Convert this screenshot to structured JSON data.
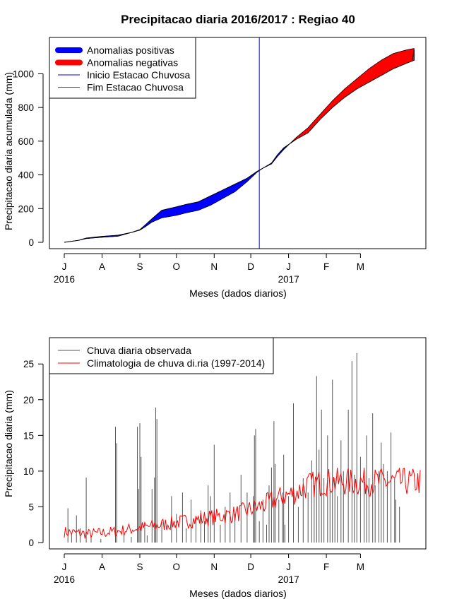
{
  "figure_title": "Precipitacao diaria 2016/2017 : Regiao 40",
  "chart_data": [
    {
      "type": "area",
      "title": "Precipitacao diaria 2016/2017 : Regiao 40",
      "xlabel": "Meses (dados diarios)",
      "ylabel": "Precipitacao diaria acumulada (mm)",
      "ylim": [
        0,
        1150
      ],
      "yticks": [
        0,
        200,
        400,
        600,
        800,
        1000
      ],
      "xlim_day": [
        0,
        292
      ],
      "months": [
        {
          "label": "J",
          "day": 0
        },
        {
          "label": "A",
          "day": 31
        },
        {
          "label": "S",
          "day": 62
        },
        {
          "label": "O",
          "day": 92
        },
        {
          "label": "N",
          "day": 123
        },
        {
          "label": "D",
          "day": 153
        },
        {
          "label": "J",
          "day": 184
        },
        {
          "label": "F",
          "day": 215
        },
        {
          "label": "M",
          "day": 243
        }
      ],
      "years": [
        {
          "label": "2016",
          "day": 0
        },
        {
          "label": "2017",
          "day": 184
        }
      ],
      "series": [
        {
          "name": "observed_accumulated",
          "days": [
            0,
            12,
            18,
            31,
            44,
            55,
            62,
            66,
            72,
            80,
            92,
            100,
            110,
            120,
            130,
            140,
            150,
            158,
            163,
            170,
            175,
            180,
            190,
            200,
            210,
            220,
            230,
            240,
            250,
            260,
            270,
            280,
            287,
            287
          ],
          "values": [
            0,
            12,
            25,
            35,
            42,
            58,
            75,
            100,
            140,
            190,
            210,
            225,
            240,
            275,
            310,
            345,
            380,
            420,
            440,
            470,
            520,
            560,
            610,
            650,
            730,
            800,
            860,
            910,
            950,
            990,
            1030,
            1060,
            1080,
            1140
          ]
        },
        {
          "name": "climatology_accumulated",
          "days": [
            0,
            12,
            18,
            31,
            44,
            55,
            62,
            66,
            72,
            80,
            92,
            100,
            110,
            120,
            130,
            140,
            150,
            158,
            163,
            170,
            175,
            180,
            190,
            200,
            210,
            220,
            230,
            240,
            250,
            260,
            270,
            280,
            287,
            287
          ],
          "values": [
            0,
            12,
            22,
            30,
            36,
            58,
            72,
            90,
            120,
            145,
            160,
            175,
            190,
            220,
            260,
            300,
            360,
            415,
            440,
            465,
            510,
            550,
            620,
            680,
            760,
            840,
            910,
            970,
            1030,
            1080,
            1120,
            1140,
            1150,
            1150
          ]
        }
      ],
      "rainy_season_start_day": 160,
      "legend": {
        "position": "top-left",
        "items": [
          {
            "label": "Anomalias positivas",
            "color": "#0000ff",
            "style": "thick"
          },
          {
            "label": "Anomalias negativas",
            "color": "#ff0000",
            "style": "thick"
          },
          {
            "label": "Inicio Estacao Chuvosa",
            "color": "#0000ff",
            "style": "thin"
          },
          {
            "label": "Fim Estacao Chuvosa",
            "color": "#ff0000",
            "style": "thin"
          }
        ]
      }
    },
    {
      "type": "bar",
      "title": "",
      "xlabel": "Meses (dados diarios)",
      "ylabel": "Precipitacao diaria (mm)",
      "ylim": [
        0,
        27
      ],
      "yticks": [
        0,
        5,
        10,
        15,
        20,
        25
      ],
      "xlim_day": [
        0,
        292
      ],
      "months": [
        {
          "label": "J",
          "day": 0
        },
        {
          "label": "A",
          "day": 31
        },
        {
          "label": "S",
          "day": 62
        },
        {
          "label": "O",
          "day": 92
        },
        {
          "label": "N",
          "day": 123
        },
        {
          "label": "D",
          "day": 153
        },
        {
          "label": "J",
          "day": 184
        },
        {
          "label": "F",
          "day": 215
        },
        {
          "label": "M",
          "day": 243
        }
      ],
      "years": [
        {
          "label": "2016",
          "day": 0
        },
        {
          "label": "2017",
          "day": 184
        }
      ],
      "observed_daily": [
        [
          3,
          4.8
        ],
        [
          6,
          1.2
        ],
        [
          10,
          3.8
        ],
        [
          13,
          2.0
        ],
        [
          18,
          9.1
        ],
        [
          22,
          0.8
        ],
        [
          30,
          0.5
        ],
        [
          42,
          16.2
        ],
        [
          43,
          13.9
        ],
        [
          49,
          1.2
        ],
        [
          55,
          0.8
        ],
        [
          60,
          16.2
        ],
        [
          61,
          7.5
        ],
        [
          62,
          16.7
        ],
        [
          63,
          12.0
        ],
        [
          66,
          2.5
        ],
        [
          68,
          1.0
        ],
        [
          72,
          7.5
        ],
        [
          74,
          9.1
        ],
        [
          75,
          18.9
        ],
        [
          76,
          17.3
        ],
        [
          80,
          3.0
        ],
        [
          88,
          6.5
        ],
        [
          92,
          4.0
        ],
        [
          97,
          7.0
        ],
        [
          100,
          2.0
        ],
        [
          104,
          6.0
        ],
        [
          108,
          3.5
        ],
        [
          112,
          4.5
        ],
        [
          115,
          3.0
        ],
        [
          118,
          8.0
        ],
        [
          120,
          6.5
        ],
        [
          123,
          13.7
        ],
        [
          128,
          2.5
        ],
        [
          132,
          5.0
        ],
        [
          136,
          7.0
        ],
        [
          140,
          4.0
        ],
        [
          145,
          9.5
        ],
        [
          150,
          7.0
        ],
        [
          155,
          6.5
        ],
        [
          156,
          15.0
        ],
        [
          157,
          15.9
        ],
        [
          160,
          3.0
        ],
        [
          163,
          6.0
        ],
        [
          166,
          2.5
        ],
        [
          168,
          8.0
        ],
        [
          170,
          10.5
        ],
        [
          172,
          17.0
        ],
        [
          173,
          11.0
        ],
        [
          176,
          6.0
        ],
        [
          179,
          7.0
        ],
        [
          180,
          12.3
        ],
        [
          181,
          2.5
        ],
        [
          184,
          6.5
        ],
        [
          188,
          19.5
        ],
        [
          192,
          5.0
        ],
        [
          196,
          9.0
        ],
        [
          200,
          7.0
        ],
        [
          203,
          11.5
        ],
        [
          205,
          8.0
        ],
        [
          207,
          23.3
        ],
        [
          209,
          13.0
        ],
        [
          211,
          18.6
        ],
        [
          213,
          9.0
        ],
        [
          216,
          15.0
        ],
        [
          218,
          7.5
        ],
        [
          220,
          22.8
        ],
        [
          222,
          9.0
        ],
        [
          224,
          6.5
        ],
        [
          227,
          14.3
        ],
        [
          229,
          10.0
        ],
        [
          233,
          18.6
        ],
        [
          236,
          25.4
        ],
        [
          238,
          9.5
        ],
        [
          240,
          26.5
        ],
        [
          243,
          12.0
        ],
        [
          246,
          8.5
        ],
        [
          248,
          15.0
        ],
        [
          250,
          9.0
        ],
        [
          253,
          18.1
        ],
        [
          255,
          8.0
        ],
        [
          258,
          10.0
        ],
        [
          260,
          14.0
        ],
        [
          262,
          11.0
        ],
        [
          265,
          10.0
        ],
        [
          268,
          15.4
        ],
        [
          271,
          9.0
        ],
        [
          272,
          6.0
        ],
        [
          275,
          5.0
        ]
      ],
      "climatology_daily": {
        "start_day": 0,
        "end_day": 292,
        "knots": [
          [
            0,
            1.5
          ],
          [
            20,
            1.2
          ],
          [
            40,
            1.5
          ],
          [
            60,
            2.0
          ],
          [
            80,
            2.5
          ],
          [
            100,
            3.0
          ],
          [
            120,
            3.5
          ],
          [
            140,
            4.0
          ],
          [
            160,
            5.0
          ],
          [
            180,
            6.5
          ],
          [
            190,
            7.0
          ],
          [
            200,
            8.0
          ],
          [
            215,
            8.5
          ],
          [
            230,
            8.5
          ],
          [
            245,
            8.5
          ],
          [
            260,
            8.5
          ],
          [
            275,
            8.5
          ],
          [
            292,
            8.5
          ]
        ]
      },
      "legend": {
        "position": "top-left",
        "items": [
          {
            "label": "Chuva diaria observada",
            "color": "#555555"
          },
          {
            "label": "Climatologia de chuva di.ria (1997-2014)",
            "color": "#ff0000"
          }
        ]
      }
    }
  ]
}
